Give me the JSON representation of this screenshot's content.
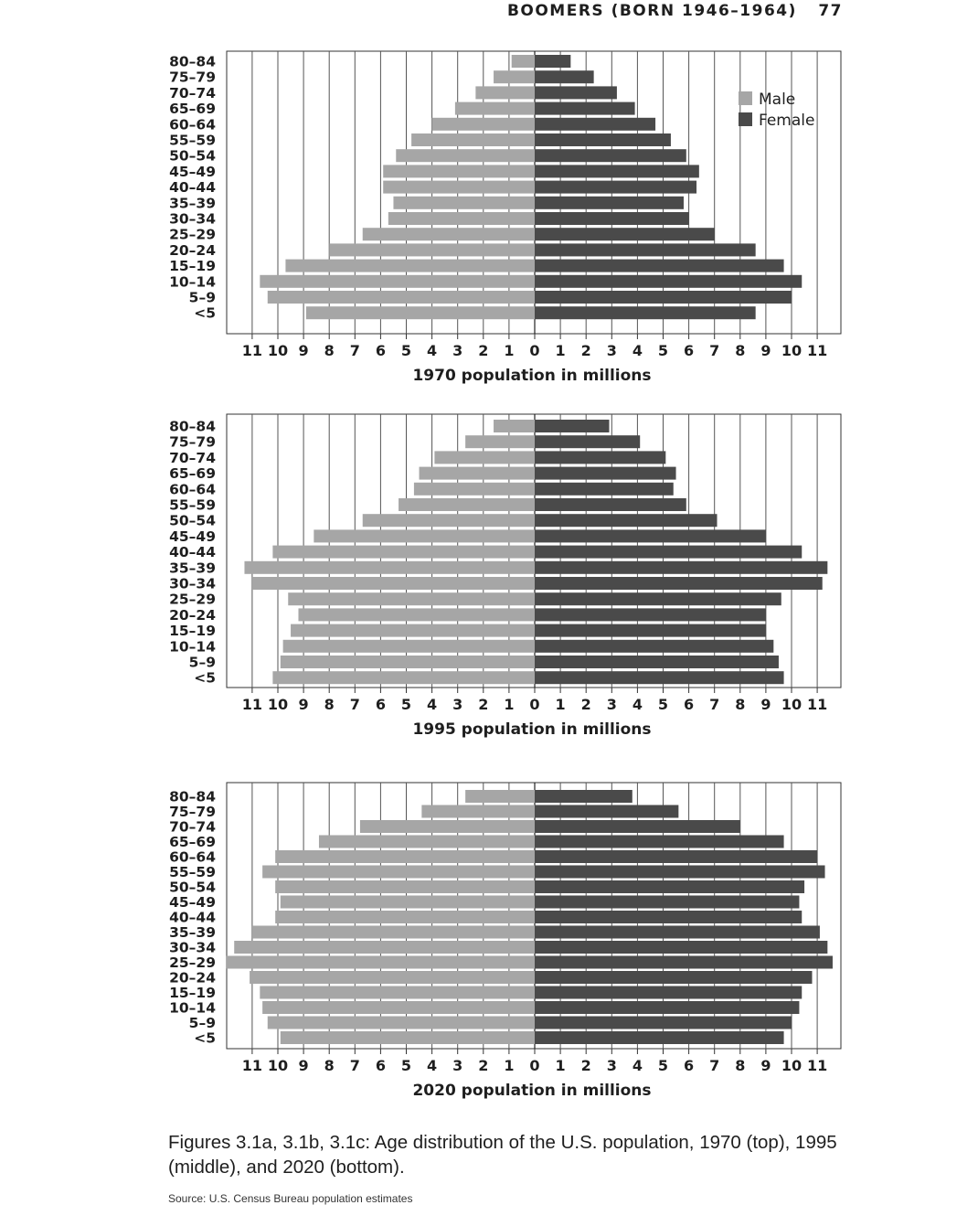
{
  "header": {
    "title": "BOOMERS (BORN 1946–1964)",
    "page_number": "77"
  },
  "chart_data": [
    {
      "type": "bar",
      "orientation": "horizontal-population-pyramid",
      "title": "",
      "xlabel": "1970 population in millions",
      "ylabel": "",
      "categories": [
        "80–84",
        "75–79",
        "70–74",
        "65–69",
        "60–64",
        "55–59",
        "50–54",
        "45–49",
        "40–44",
        "35–39",
        "30–34",
        "25–29",
        "20–24",
        "15–19",
        "10–14",
        "5–9",
        "<5"
      ],
      "series": [
        {
          "name": "Male",
          "color": "#a6a6a6",
          "values": [
            0.9,
            1.6,
            2.3,
            3.1,
            4.0,
            4.8,
            5.4,
            5.9,
            5.9,
            5.5,
            5.7,
            6.7,
            8.0,
            9.7,
            10.7,
            10.4,
            8.9
          ]
        },
        {
          "name": "Female",
          "color": "#4a4a4a",
          "values": [
            1.4,
            2.3,
            3.2,
            3.9,
            4.7,
            5.3,
            5.9,
            6.4,
            6.3,
            5.8,
            6.0,
            7.0,
            8.6,
            9.7,
            10.4,
            10.0,
            8.6
          ]
        }
      ],
      "x_tick_labels": [
        "11",
        "10",
        "9",
        "8",
        "7",
        "6",
        "5",
        "4",
        "3",
        "2",
        "1",
        "0",
        "1",
        "2",
        "3",
        "4",
        "5",
        "6",
        "7",
        "8",
        "9",
        "10",
        "11"
      ],
      "xlim": [
        -12,
        12
      ],
      "grid": true,
      "legend": {
        "position": "top-right",
        "entries": [
          "Male",
          "Female"
        ]
      }
    },
    {
      "type": "bar",
      "orientation": "horizontal-population-pyramid",
      "title": "",
      "xlabel": "1995 population in millions",
      "ylabel": "",
      "categories": [
        "80–84",
        "75–79",
        "70–74",
        "65–69",
        "60–64",
        "55–59",
        "50–54",
        "45–49",
        "40–44",
        "35–39",
        "30–34",
        "25–29",
        "20–24",
        "15–19",
        "10–14",
        "5–9",
        "<5"
      ],
      "series": [
        {
          "name": "Male",
          "color": "#a6a6a6",
          "values": [
            1.6,
            2.7,
            3.9,
            4.5,
            4.7,
            5.3,
            6.7,
            8.6,
            10.2,
            11.3,
            11.0,
            9.6,
            9.2,
            9.5,
            9.8,
            9.9,
            10.2
          ]
        },
        {
          "name": "Female",
          "color": "#4a4a4a",
          "values": [
            2.9,
            4.1,
            5.1,
            5.5,
            5.4,
            5.9,
            7.1,
            9.0,
            10.4,
            11.4,
            11.2,
            9.6,
            9.0,
            9.0,
            9.3,
            9.5,
            9.7
          ]
        }
      ],
      "x_tick_labels": [
        "11",
        "10",
        "9",
        "8",
        "7",
        "6",
        "5",
        "4",
        "3",
        "2",
        "1",
        "0",
        "1",
        "2",
        "3",
        "4",
        "5",
        "6",
        "7",
        "8",
        "9",
        "10",
        "11"
      ],
      "xlim": [
        -12,
        12
      ],
      "grid": true
    },
    {
      "type": "bar",
      "orientation": "horizontal-population-pyramid",
      "title": "",
      "xlabel": "2020 population in millions",
      "ylabel": "",
      "categories": [
        "80–84",
        "75–79",
        "70–74",
        "65–69",
        "60–64",
        "55–59",
        "50–54",
        "45–49",
        "40–44",
        "35–39",
        "30–34",
        "25–29",
        "20–24",
        "15–19",
        "10–14",
        "5–9",
        "<5"
      ],
      "series": [
        {
          "name": "Male",
          "color": "#a6a6a6",
          "values": [
            2.7,
            4.4,
            6.8,
            8.4,
            10.1,
            10.6,
            10.1,
            9.9,
            10.1,
            11.0,
            11.7,
            12.0,
            11.1,
            10.7,
            10.6,
            10.4,
            9.9
          ]
        },
        {
          "name": "Female",
          "color": "#4a4a4a",
          "values": [
            3.8,
            5.6,
            8.0,
            9.7,
            11.0,
            11.3,
            10.5,
            10.3,
            10.4,
            11.1,
            11.4,
            11.6,
            10.8,
            10.4,
            10.3,
            10.0,
            9.7
          ]
        }
      ],
      "x_tick_labels": [
        "11",
        "10",
        "9",
        "8",
        "7",
        "6",
        "5",
        "4",
        "3",
        "2",
        "1",
        "0",
        "1",
        "2",
        "3",
        "4",
        "5",
        "6",
        "7",
        "8",
        "9",
        "10",
        "11"
      ],
      "xlim": [
        -12,
        12
      ],
      "grid": true
    }
  ],
  "caption": "Figures 3.1a, 3.1b, 3.1c: Age distribution of the U.S. population, 1970 (top), 1995 (middle), and 2020 (bottom).",
  "source": "Source: U.S. Census Bureau population estimates"
}
